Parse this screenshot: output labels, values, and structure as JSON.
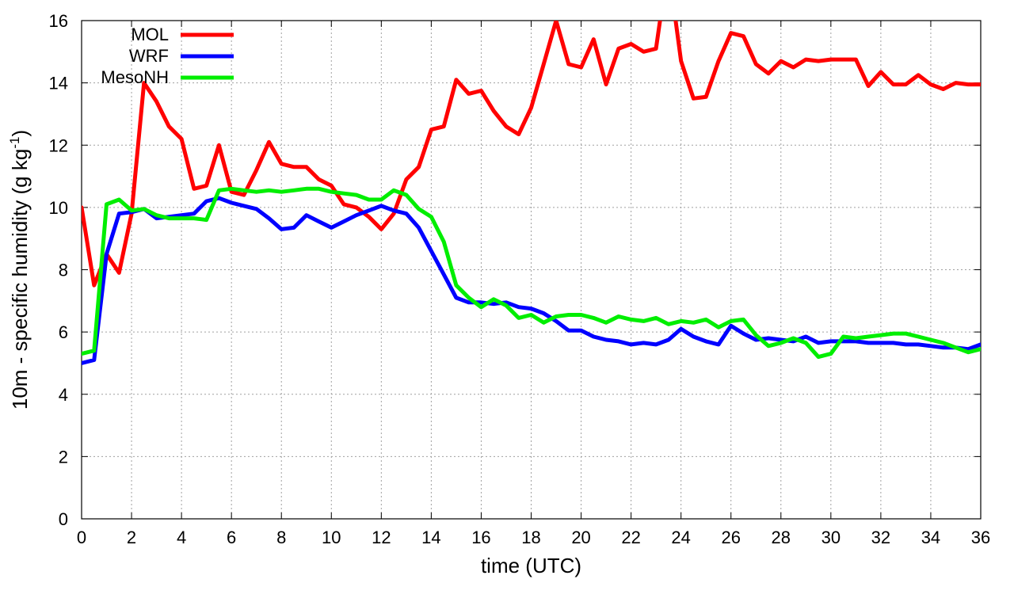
{
  "chart_data": {
    "type": "line",
    "xlabel": "time (UTC)",
    "ylabel": {
      "main": "10m - specific humidity (g kg",
      "sup": "-1",
      "close": ")"
    },
    "xlim": [
      0,
      36
    ],
    "ylim": [
      0,
      16
    ],
    "xticks": [
      0,
      2,
      4,
      6,
      8,
      10,
      12,
      14,
      16,
      18,
      20,
      22,
      24,
      26,
      28,
      30,
      32,
      34,
      36
    ],
    "yticks": [
      0,
      2,
      4,
      6,
      8,
      10,
      12,
      14,
      16
    ],
    "grid": true,
    "legend_position": "top-left",
    "series": [
      {
        "name": "MOL",
        "color": "#ff0000",
        "x": [
          0,
          0.5,
          1,
          1.5,
          2,
          2.5,
          3,
          3.5,
          4,
          4.5,
          5,
          5.5,
          6,
          6.5,
          7,
          7.5,
          8,
          8.5,
          9,
          9.5,
          10,
          10.5,
          11,
          11.5,
          12,
          12.5,
          13,
          13.5,
          14,
          14.5,
          15,
          15.5,
          16,
          16.5,
          17,
          17.5,
          18,
          18.5,
          19,
          19.5,
          20,
          20.5,
          21,
          21.5,
          22,
          22.5,
          23,
          23.25,
          23.5,
          23.75,
          24,
          24.5,
          25,
          25.5,
          26,
          26.5,
          27,
          27.5,
          28,
          28.5,
          29,
          29.5,
          30,
          30.5,
          31,
          31.5,
          32,
          32.5,
          33,
          33.5,
          34,
          34.5,
          35,
          35.5,
          36
        ],
        "y": [
          10.0,
          7.5,
          8.5,
          7.9,
          9.8,
          14.0,
          13.4,
          12.6,
          12.2,
          10.6,
          10.7,
          12.0,
          10.5,
          10.4,
          11.2,
          12.1,
          11.4,
          11.3,
          11.3,
          10.9,
          10.7,
          10.1,
          10.0,
          9.7,
          9.3,
          9.8,
          10.9,
          11.3,
          12.5,
          12.6,
          14.1,
          13.65,
          13.75,
          13.1,
          12.6,
          12.35,
          13.2,
          14.6,
          16.0,
          14.6,
          14.5,
          15.4,
          13.95,
          15.1,
          15.25,
          15.0,
          15.1,
          16.5,
          16.5,
          16.2,
          14.7,
          13.5,
          13.55,
          14.7,
          15.6,
          15.5,
          14.6,
          14.3,
          14.7,
          14.5,
          14.75,
          14.7,
          14.75,
          14.75,
          14.75,
          13.9,
          14.35,
          13.95,
          13.95,
          14.25,
          13.95,
          13.8,
          14.0,
          13.95,
          13.95
        ]
      },
      {
        "name": "WRF",
        "color": "#0000ff",
        "x": [
          0,
          0.5,
          1,
          1.5,
          2,
          2.5,
          3,
          3.5,
          4,
          4.5,
          5,
          5.5,
          6,
          6.5,
          7,
          7.5,
          8,
          8.5,
          9,
          9.5,
          10,
          10.5,
          11,
          11.5,
          12,
          12.5,
          13,
          13.5,
          14,
          14.5,
          15,
          15.5,
          16,
          16.5,
          17,
          17.5,
          18,
          18.5,
          19,
          19.5,
          20,
          20.5,
          21,
          21.5,
          22,
          22.5,
          23,
          23.5,
          24,
          24.5,
          25,
          25.5,
          26,
          26.5,
          27,
          27.5,
          28,
          28.5,
          29,
          29.5,
          30,
          30.5,
          31,
          31.5,
          32,
          32.5,
          33,
          33.5,
          34,
          34.5,
          35,
          35.5,
          36
        ],
        "y": [
          5.0,
          5.1,
          8.5,
          9.8,
          9.85,
          9.95,
          9.65,
          9.7,
          9.75,
          9.8,
          10.2,
          10.3,
          10.15,
          10.05,
          9.95,
          9.65,
          9.3,
          9.35,
          9.75,
          9.55,
          9.35,
          9.55,
          9.75,
          9.9,
          10.05,
          9.9,
          9.8,
          9.35,
          8.6,
          7.85,
          7.1,
          6.95,
          6.95,
          6.9,
          6.95,
          6.8,
          6.75,
          6.6,
          6.35,
          6.05,
          6.05,
          5.85,
          5.75,
          5.7,
          5.6,
          5.65,
          5.6,
          5.75,
          6.1,
          5.85,
          5.7,
          5.6,
          6.2,
          5.95,
          5.75,
          5.8,
          5.75,
          5.7,
          5.85,
          5.65,
          5.7,
          5.7,
          5.7,
          5.65,
          5.65,
          5.65,
          5.6,
          5.6,
          5.55,
          5.5,
          5.5,
          5.45,
          5.6
        ]
      },
      {
        "name": "MesoNH",
        "color": "#00ee00",
        "x": [
          0,
          0.5,
          1,
          1.5,
          2,
          2.5,
          3,
          3.5,
          4,
          4.5,
          5,
          5.5,
          6,
          6.5,
          7,
          7.5,
          8,
          8.5,
          9,
          9.5,
          10,
          10.5,
          11,
          11.5,
          12,
          12.5,
          13,
          13.5,
          14,
          14.5,
          15,
          15.5,
          16,
          16.5,
          17,
          17.5,
          18,
          18.5,
          19,
          19.5,
          20,
          20.5,
          21,
          21.5,
          22,
          22.5,
          23,
          23.5,
          24,
          24.5,
          25,
          25.5,
          26,
          26.5,
          27,
          27.5,
          28,
          28.5,
          29,
          29.5,
          30,
          30.5,
          31,
          31.5,
          32,
          32.5,
          33,
          33.5,
          34,
          34.5,
          35,
          35.5,
          36
        ],
        "y": [
          5.3,
          5.4,
          10.1,
          10.25,
          9.9,
          9.95,
          9.75,
          9.65,
          9.65,
          9.65,
          9.6,
          10.55,
          10.6,
          10.55,
          10.5,
          10.55,
          10.5,
          10.55,
          10.6,
          10.6,
          10.5,
          10.45,
          10.4,
          10.25,
          10.25,
          10.55,
          10.4,
          9.95,
          9.7,
          8.9,
          7.5,
          7.1,
          6.8,
          7.05,
          6.85,
          6.45,
          6.55,
          6.3,
          6.5,
          6.55,
          6.55,
          6.45,
          6.3,
          6.5,
          6.4,
          6.35,
          6.45,
          6.25,
          6.35,
          6.3,
          6.4,
          6.15,
          6.35,
          6.4,
          5.9,
          5.55,
          5.65,
          5.8,
          5.65,
          5.2,
          5.3,
          5.85,
          5.8,
          5.85,
          5.9,
          5.95,
          5.95,
          5.85,
          5.75,
          5.65,
          5.5,
          5.35,
          5.45
        ]
      }
    ]
  }
}
